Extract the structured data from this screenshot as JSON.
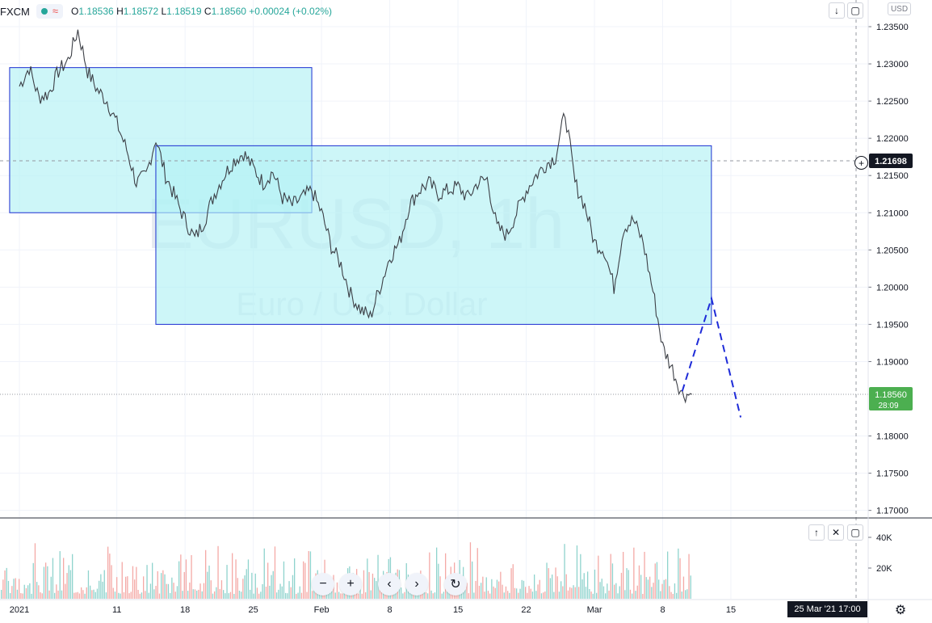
{
  "legend": {
    "symbol": "FXCM",
    "open_label": "O",
    "open": "1.18536",
    "high_label": "H",
    "high": "1.18572",
    "low_label": "L",
    "low": "1.18519",
    "close_label": "C",
    "close": "1.18560",
    "change": "+0.00024 (+0.02%)"
  },
  "watermark": {
    "symbol": "EURUSD, 1h",
    "description": "Euro / U.S. Dollar"
  },
  "currency_label": "USD",
  "crosshair_price": "1.21698",
  "last_price": {
    "price": "1.18560",
    "countdown": "28:09"
  },
  "date_readout": "25 Mar '21   17:00",
  "colors": {
    "up": "#26a69a",
    "down": "#ef5350",
    "zone_fill": "#b2f1f5",
    "zone_border": "#1c2fd1",
    "projection": "#1e2bd8",
    "price_badge": "#4caf50",
    "crosshair_badge": "#131722"
  },
  "volume_ticks": [
    "40K",
    "20K"
  ],
  "chart_data": {
    "type": "line",
    "title": "",
    "xlabel": "",
    "ylabel": "",
    "x_ticks": [
      "2021",
      "11",
      "18",
      "25",
      "Feb",
      "8",
      "15",
      "22",
      "Mar",
      "8",
      "15"
    ],
    "y_ticks": [
      "1.23500",
      "1.23000",
      "1.22500",
      "1.22000",
      "1.21500",
      "1.21000",
      "1.20500",
      "1.20000",
      "1.19500",
      "1.19000",
      "1.18000",
      "1.17500",
      "1.17000"
    ],
    "ylim": [
      1.1695,
      1.2365
    ],
    "xlim": [
      "2021-01-01",
      "2021-03-21"
    ],
    "grid": true,
    "series": [
      {
        "x": [
          "2021-01-01",
          "2021-01-02",
          "2021-01-03",
          "2021-01-04",
          "2021-01-05",
          "2021-01-06",
          "2021-01-07",
          "2021-01-08",
          "2021-01-09",
          "2021-01-10",
          "2021-01-11",
          "2021-01-12",
          "2021-01-13",
          "2021-01-14",
          "2021-01-15",
          "2021-01-16",
          "2021-01-17",
          "2021-01-18",
          "2021-01-19",
          "2021-01-20",
          "2021-01-21",
          "2021-01-22",
          "2021-01-23",
          "2021-01-24",
          "2021-01-25",
          "2021-01-26",
          "2021-01-27",
          "2021-01-28",
          "2021-01-29",
          "2021-01-30",
          "2021-01-31",
          "2021-02-01",
          "2021-02-02",
          "2021-02-03",
          "2021-02-04",
          "2021-02-05",
          "2021-02-06",
          "2021-02-07",
          "2021-02-08",
          "2021-02-09",
          "2021-02-10",
          "2021-02-11",
          "2021-02-12",
          "2021-02-13",
          "2021-02-14",
          "2021-02-15",
          "2021-02-16",
          "2021-02-17",
          "2021-02-18",
          "2021-02-19",
          "2021-02-20",
          "2021-02-21",
          "2021-02-22",
          "2021-02-23",
          "2021-02-24",
          "2021-02-25",
          "2021-02-26",
          "2021-02-27",
          "2021-02-28",
          "2021-03-01",
          "2021-03-02",
          "2021-03-03",
          "2021-03-04",
          "2021-03-05",
          "2021-03-06",
          "2021-03-07",
          "2021-03-08",
          "2021-03-09",
          "2021-03-10",
          "2021-03-11"
        ],
        "values": [
          1.227,
          1.2295,
          1.2255,
          1.226,
          1.229,
          1.2305,
          1.2345,
          1.229,
          1.2265,
          1.225,
          1.222,
          1.2185,
          1.214,
          1.215,
          1.22,
          1.215,
          1.212,
          1.209,
          1.2065,
          1.209,
          1.2125,
          1.215,
          1.217,
          1.218,
          1.216,
          1.214,
          1.2155,
          1.212,
          1.211,
          1.212,
          1.213,
          1.21,
          1.2055,
          1.203,
          1.199,
          1.197,
          1.196,
          1.2,
          1.204,
          1.206,
          1.211,
          1.213,
          1.214,
          1.2125,
          1.213,
          1.2135,
          1.212,
          1.214,
          1.2145,
          1.208,
          1.207,
          1.21,
          1.213,
          1.215,
          1.2165,
          1.2175,
          1.2235,
          1.214,
          1.211,
          1.206,
          1.205,
          1.2,
          1.208,
          1.209,
          1.206,
          1.1995,
          1.192,
          1.189,
          1.1856,
          1.1856
        ]
      }
    ],
    "zones": [
      {
        "start": "2020-12-31",
        "end": "2021-01-31",
        "top": 1.2295,
        "bottom": 1.21
      },
      {
        "start": "2021-01-15",
        "end": "2021-03-13",
        "top": 1.219,
        "bottom": 1.195
      }
    ],
    "projection": {
      "x": [
        "2021-03-10",
        "2021-03-13",
        "2021-03-16"
      ],
      "values": [
        1.186,
        1.1985,
        1.1825
      ]
    },
    "volume": {
      "ticks": [
        "40K",
        "20K"
      ],
      "ylim": [
        0,
        50000
      ]
    }
  }
}
